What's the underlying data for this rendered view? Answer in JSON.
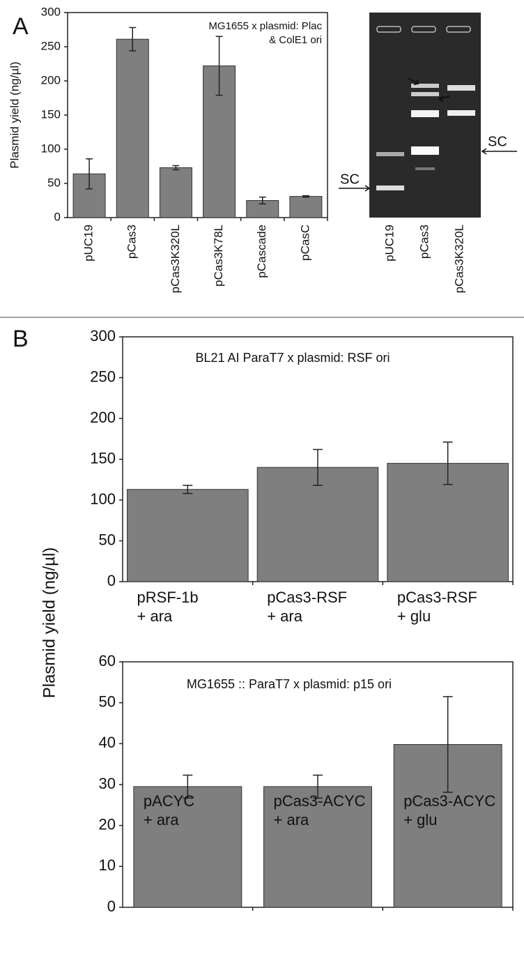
{
  "panel_labels": [
    "A",
    "B"
  ],
  "gel": {
    "lanes": [
      "pUC19",
      "pCas3",
      "pCas3K320L"
    ],
    "marker_label": "SC"
  },
  "chart_data": [
    {
      "type": "bar",
      "title": [
        "MG1655 x plasmid: Plac",
        "& ColE1 ori"
      ],
      "ylabel": "Plasmid yield (ng/µl)",
      "categories": [
        [
          "pUC19"
        ],
        [
          "pCas3"
        ],
        [
          "pCas3K320L"
        ],
        [
          "pCas3K78L"
        ],
        [
          "pCascade"
        ],
        [
          "pCasC"
        ]
      ],
      "values": [
        64,
        261,
        73,
        222,
        25,
        31
      ],
      "errors": [
        22,
        17,
        3,
        43,
        5,
        1
      ],
      "color": "#7f7f7f",
      "ylim": [
        0,
        300
      ],
      "yticks": [
        0,
        50,
        100,
        150,
        200,
        250,
        300
      ]
    },
    {
      "type": "bar",
      "title": [
        "BL21 AI ParaT7 x plasmid: RSF ori"
      ],
      "ylabel": "Plasmid yield (ng/µl)",
      "categories": [
        [
          "pRSF-1b",
          "+ ara"
        ],
        [
          "pCas3-RSF",
          "+ ara"
        ],
        [
          "pCas3-RSF",
          "+ glu"
        ]
      ],
      "values": [
        113,
        140,
        145
      ],
      "errors": [
        5,
        22,
        26
      ],
      "color": "#7f7f7f",
      "ylim": [
        0,
        300
      ],
      "yticks": [
        0,
        50,
        100,
        150,
        200,
        250,
        300
      ]
    },
    {
      "type": "bar",
      "title": [
        "MG1655 :: ParaT7 x plasmid: p15 ori"
      ],
      "categories": [
        [
          "pACYC",
          "+ ara"
        ],
        [
          "pCas3-ACYC",
          "+ ara"
        ],
        [
          "pCas3-ACYC",
          "+ glu"
        ]
      ],
      "values": [
        29.5,
        29.5,
        39.8
      ],
      "errors": [
        2.8,
        2.8,
        11.7
      ],
      "color": "#7f7f7f",
      "ylim": [
        0,
        60
      ],
      "yticks": [
        0,
        10,
        20,
        30,
        40,
        50,
        60
      ]
    }
  ]
}
